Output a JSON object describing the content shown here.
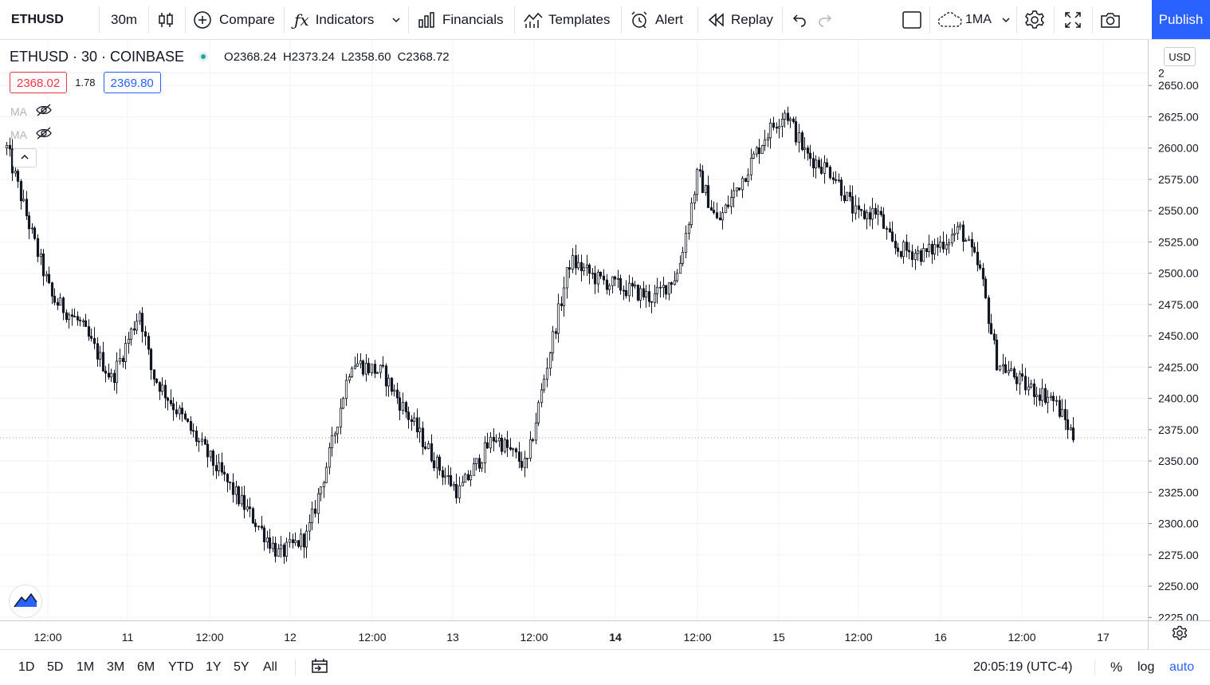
{
  "toolbar": {
    "symbol": "ETHUSD",
    "interval": "30m",
    "chart_type_icon": "candles-icon",
    "compare": "Compare",
    "indicators": "Indicators",
    "financials": "Financials",
    "templates": "Templates",
    "alert": "Alert",
    "replay": "Replay",
    "layout_name": "1MA",
    "publish": "Publish"
  },
  "legend": {
    "title": "ETHUSD · 30 · COINBASE",
    "open": "O2368.24",
    "high": "H2373.24",
    "low": "L2358.60",
    "close": "C2368.72",
    "bid": "2368.02",
    "spread": "1.78",
    "ask": "2369.80",
    "ma1": "MA",
    "ma2": "MA"
  },
  "price_axis": {
    "currency": "USD",
    "top_clipped": "2",
    "ticks": [
      "2650.00",
      "2625.00",
      "2600.00",
      "2575.00",
      "2550.00",
      "2525.00",
      "2500.00",
      "2475.00",
      "2450.00",
      "2425.00",
      "2400.00",
      "2375.00",
      "2350.00",
      "2325.00",
      "2300.00",
      "2275.00",
      "2250.00",
      "2225.00"
    ]
  },
  "time_axis": {
    "labels": [
      "12:00",
      "11",
      "12:00",
      "12",
      "12:00",
      "13",
      "12:00",
      "14",
      "12:00",
      "15",
      "12:00",
      "16",
      "12:00",
      "17"
    ]
  },
  "bottom_bar": {
    "ranges": [
      "1D",
      "5D",
      "1M",
      "3M",
      "6M",
      "YTD",
      "1Y",
      "5Y",
      "All"
    ],
    "clock": "20:05:19 (UTC-4)",
    "percent": "%",
    "log": "log",
    "auto": "auto"
  },
  "colors": {
    "accent": "#2962ff",
    "bid": "#f23645",
    "ask": "#2962ff",
    "candle": "#131722",
    "grid": "#f0f3fa",
    "live_dot": "#26a69a"
  },
  "chart_data": {
    "type": "candlestick",
    "symbol": "ETHUSD",
    "ylim": [
      2225,
      2660
    ],
    "key_points": [
      {
        "x": "10 ~05:00",
        "y": 2600
      },
      {
        "x": "10 ~08:00",
        "y": 2520
      },
      {
        "x": "10 ~10:00",
        "y": 2480
      },
      {
        "x": "10 ~15:00",
        "y": 2460
      },
      {
        "x": "11 ~00:00",
        "y": 2415
      },
      {
        "x": "11 ~08:00",
        "y": 2470
      },
      {
        "x": "11 ~12:00",
        "y": 2420
      },
      {
        "x": "11 ~20:00",
        "y": 2350
      },
      {
        "x": "11 ~23:00",
        "y": 2275
      },
      {
        "x": "12 ~03:00",
        "y": 2290
      },
      {
        "x": "12 ~06:00",
        "y": 2360
      },
      {
        "x": "12 ~09:00",
        "y": 2430
      },
      {
        "x": "12 ~15:00",
        "y": 2420
      },
      {
        "x": "12 ~23:00",
        "y": 2345
      },
      {
        "x": "13 ~03:00",
        "y": 2325
      },
      {
        "x": "13 ~08:00",
        "y": 2370
      },
      {
        "x": "13 ~12:00",
        "y": 2345
      },
      {
        "x": "13 ~16:00",
        "y": 2440
      },
      {
        "x": "13 ~18:00",
        "y": 2510
      },
      {
        "x": "13 ~22:00",
        "y": 2495
      },
      {
        "x": "14 ~05:00",
        "y": 2480
      },
      {
        "x": "14 ~09:00",
        "y": 2500
      },
      {
        "x": "14 ~12:00",
        "y": 2580
      },
      {
        "x": "14 ~16:00",
        "y": 2540
      },
      {
        "x": "14 ~22:00",
        "y": 2610
      },
      {
        "x": "15 ~02:00",
        "y": 2630
      },
      {
        "x": "15 ~06:00",
        "y": 2595
      },
      {
        "x": "15 ~10:00",
        "y": 2580
      },
      {
        "x": "15 ~14:00",
        "y": 2545
      },
      {
        "x": "15 ~18:00",
        "y": 2550
      },
      {
        "x": "15 ~22:00",
        "y": 2520
      },
      {
        "x": "16 ~02:00",
        "y": 2515
      },
      {
        "x": "16 ~06:00",
        "y": 2535
      },
      {
        "x": "16 ~10:00",
        "y": 2500
      },
      {
        "x": "16 ~13:00",
        "y": 2430
      },
      {
        "x": "16 ~17:00",
        "y": 2410
      },
      {
        "x": "16 ~19:00",
        "y": 2400
      },
      {
        "x": "16 ~20:00",
        "y": 2368
      }
    ]
  }
}
